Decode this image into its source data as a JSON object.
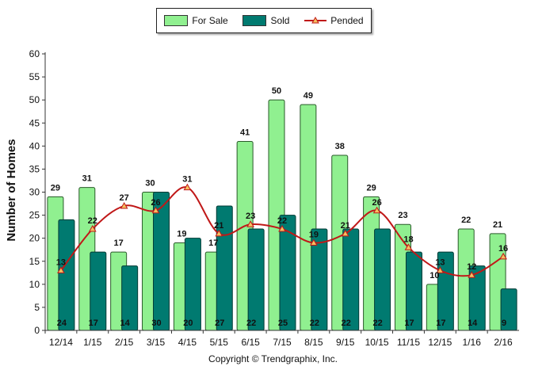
{
  "chart_data": {
    "type": "bar",
    "categories": [
      "12/14",
      "1/15",
      "2/15",
      "3/15",
      "4/15",
      "5/15",
      "6/15",
      "7/15",
      "8/15",
      "9/15",
      "10/15",
      "11/15",
      "12/15",
      "1/16",
      "2/16"
    ],
    "series": [
      {
        "name": "For Sale",
        "type": "bar",
        "values": [
          29,
          31,
          17,
          30,
          19,
          17,
          41,
          50,
          49,
          38,
          29,
          23,
          10,
          22,
          21
        ]
      },
      {
        "name": "Sold",
        "type": "bar",
        "values": [
          24,
          17,
          14,
          30,
          20,
          27,
          22,
          25,
          22,
          22,
          22,
          17,
          17,
          14,
          9
        ]
      },
      {
        "name": "Pended",
        "type": "line",
        "values": [
          13,
          22,
          27,
          26,
          31,
          21,
          23,
          22,
          19,
          21,
          26,
          18,
          13,
          12,
          16
        ]
      }
    ],
    "title": "",
    "xlabel": "",
    "ylabel": "Number of Homes",
    "ylim": [
      0,
      60
    ],
    "yticks": [
      0,
      5,
      10,
      15,
      20,
      25,
      30,
      35,
      40,
      45,
      50,
      55,
      60
    ],
    "legend_position": "top-center",
    "colors": {
      "for_sale": "#90f090",
      "sold": "#007a70",
      "pended_line": "#c01818",
      "pended_marker": "#f4c060"
    }
  },
  "legend": {
    "for_sale": "For Sale",
    "sold": "Sold",
    "pended": "Pended"
  },
  "copyright": "Copyright © Trendgraphix, Inc."
}
